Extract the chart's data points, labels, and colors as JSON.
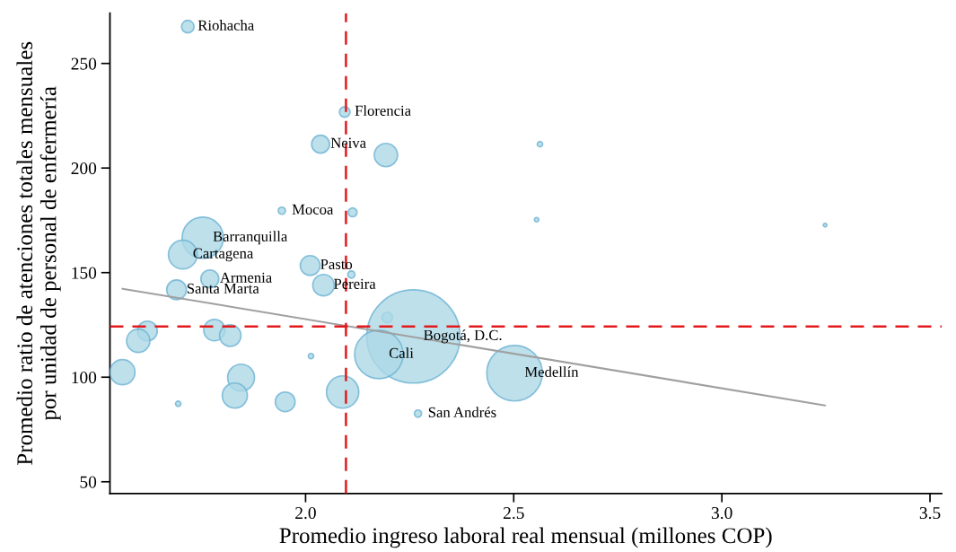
{
  "chart_data": {
    "type": "bubble",
    "xlabel": "Promedio ingreso laboral real mensual (millones COP)",
    "ylabel": "Promedio ratio de atenciones totales mensuales\npor unidad de personal de enfermería",
    "xlim": [
      1.53,
      3.528
    ],
    "ylim": [
      44.4,
      274
    ],
    "xticks": [
      {
        "value": 2.0,
        "label": "2.0"
      },
      {
        "value": 2.5,
        "label": "2.5"
      },
      {
        "value": 3.0,
        "label": "3.0"
      },
      {
        "value": 3.5,
        "label": "3.5"
      }
    ],
    "yticks": [
      50,
      100,
      150,
      200,
      250
    ],
    "series": [
      {
        "color": "#add8e6",
        "x": [
          1.717,
          2.094,
          2.036,
          2.193,
          2.563,
          1.943,
          2.113,
          2.555,
          3.248,
          1.753,
          1.705,
          2.011,
          2.11,
          2.043,
          1.77,
          1.69,
          2.196,
          2.259,
          2.176,
          2.502,
          1.62,
          1.598,
          1.781,
          1.819,
          1.56,
          1.845,
          1.83,
          1.694,
          1.951,
          2.089,
          2.013,
          2.27
        ],
        "values": [
          267.6,
          226.8,
          211.4,
          206.2,
          211.4,
          179.6,
          178.8,
          175.3,
          172.7,
          166.7,
          158.6,
          153.4,
          149.1,
          144.0,
          147.0,
          141.8,
          128.5,
          119.5,
          110.9,
          101.9,
          122.1,
          117.4,
          122.5,
          119.9,
          102.4,
          99.8,
          91.2,
          87.3,
          88.2,
          92.9,
          110.1,
          82.6
        ],
        "sizes": [
          0.018,
          0.013,
          0.037,
          0.0625,
          0.0033,
          0.006,
          0.009,
          0.0023,
          0.0015,
          0.196,
          0.095,
          0.045,
          0.006,
          0.053,
          0.037,
          0.045,
          0.013,
          1,
          0.27,
          0.355,
          0.045,
          0.0625,
          0.053,
          0.053,
          0.0725,
          0.083,
          0.0725,
          0.0033,
          0.045,
          0.12,
          0.0033,
          0.006
        ]
      },
      {
        "type": "line",
        "color": "#a0a0a0",
        "x": [
          1.56,
          3.248
        ],
        "values": [
          142.3,
          86.5
        ]
      }
    ],
    "ref_lines": [
      {
        "axis": "x",
        "value": 2.097,
        "color": "#e31a1c",
        "line_style": "dashed"
      },
      {
        "axis": "y",
        "value": 124.2,
        "color": "#e31a1c",
        "line_style": "dashed"
      }
    ],
    "annotations": [
      {
        "text": "Riohacha",
        "x": 1.717,
        "y": 267.6
      },
      {
        "text": "Florencia",
        "x": 2.094,
        "y": 226.8
      },
      {
        "text": "Neiva",
        "x": 2.036,
        "y": 211.4
      },
      {
        "text": "Mocoa",
        "x": 1.943,
        "y": 179.6
      },
      {
        "text": "Barranquilla",
        "x": 1.753,
        "y": 166.7
      },
      {
        "text": "Cartagena",
        "x": 1.705,
        "y": 158.6
      },
      {
        "text": "Pasto",
        "x": 2.011,
        "y": 153.4
      },
      {
        "text": "Pereira",
        "x": 2.043,
        "y": 144.0
      },
      {
        "text": "Armenia",
        "x": 1.77,
        "y": 147.0
      },
      {
        "text": "Santa Marta",
        "x": 1.69,
        "y": 141.8
      },
      {
        "text": "Bogotá, D.C.",
        "x": 2.259,
        "y": 119.5
      },
      {
        "text": "Cali",
        "x": 2.176,
        "y": 110.9
      },
      {
        "text": "Medellín",
        "x": 2.502,
        "y": 101.9
      },
      {
        "text": "San Andrés",
        "x": 2.27,
        "y": 82.6
      }
    ]
  }
}
